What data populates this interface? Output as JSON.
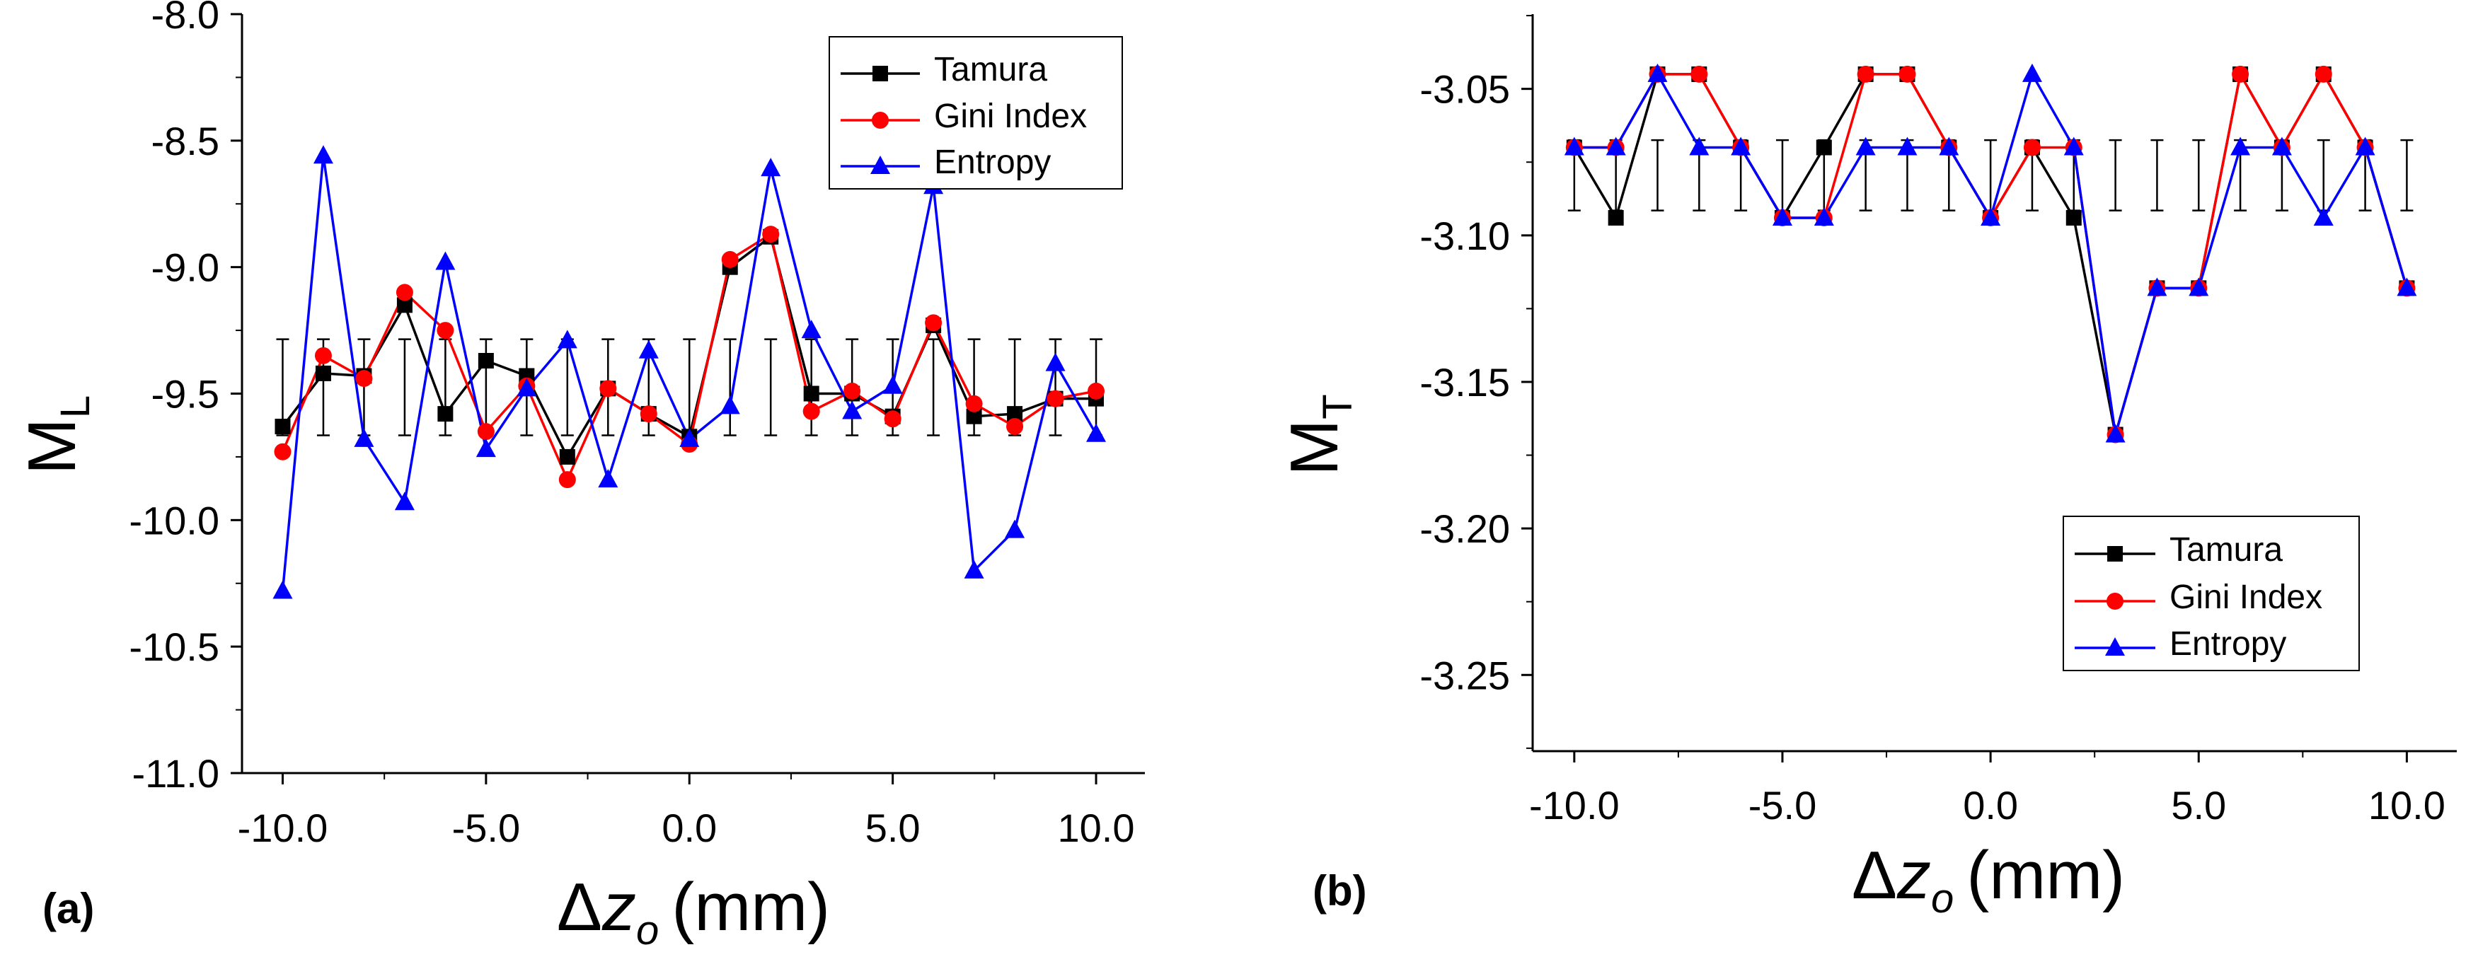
{
  "chart_data": [
    {
      "panel_label": "(a)",
      "type": "line",
      "ylabel": {
        "main": "M",
        "sub": "L"
      },
      "xlabel": {
        "delta": "Δ",
        "var": "z",
        "sub": "o",
        "unit": "(mm)"
      },
      "xlim": [
        -11,
        11.2
      ],
      "ylim": [
        -11.0,
        -8.0
      ],
      "xticks": [
        -10,
        -5,
        0,
        5,
        10
      ],
      "xtick_labels": [
        "-10.0",
        "-5.0",
        "0.0",
        "5.0",
        "10.0"
      ],
      "yticks": [
        -8.0,
        -8.5,
        -9.0,
        -9.5,
        -10.0,
        -10.5,
        -11.0
      ],
      "ytick_labels": [
        "-8.0",
        "-8.5",
        "-9.0",
        "-9.5",
        "-10.0",
        "-10.5",
        "-11.0"
      ],
      "x": [
        -10,
        -9,
        -8,
        -7,
        -6,
        -5,
        -4,
        -3,
        -2,
        -1,
        0,
        1,
        2,
        3,
        4,
        5,
        6,
        7,
        8,
        9,
        10
      ],
      "error_band": {
        "center": -9.475,
        "half_width": 0.19
      },
      "legend_position": "top-right",
      "series": [
        {
          "name": "Tamura",
          "color": "#000000",
          "marker": "square",
          "values": [
            -9.63,
            -9.42,
            -9.43,
            -9.15,
            -9.58,
            -9.37,
            -9.43,
            -9.75,
            -9.48,
            -9.58,
            -9.67,
            -9.0,
            -8.88,
            -9.5,
            -9.5,
            -9.59,
            -9.23,
            -9.59,
            -9.58,
            -9.52,
            -9.52
          ]
        },
        {
          "name": "Gini Index",
          "color": "#ff0000",
          "marker": "circle",
          "values": [
            -9.73,
            -9.35,
            -9.44,
            -9.1,
            -9.25,
            -9.65,
            -9.47,
            -9.84,
            -9.48,
            -9.58,
            -9.7,
            -8.97,
            -8.87,
            -9.57,
            -9.49,
            -9.6,
            -9.22,
            -9.54,
            -9.63,
            -9.52,
            -9.49
          ]
        },
        {
          "name": "Entropy",
          "color": "#0000ff",
          "marker": "triangle",
          "values": [
            -10.28,
            -8.56,
            -9.68,
            -9.93,
            -8.98,
            -9.72,
            -9.48,
            -9.29,
            -9.84,
            -9.33,
            -9.68,
            -9.55,
            -8.61,
            -9.25,
            -9.57,
            -9.47,
            -8.68,
            -10.2,
            -10.04,
            -9.38,
            -9.66
          ]
        }
      ]
    },
    {
      "panel_label": "(b)",
      "type": "line",
      "ylabel": {
        "main": "M",
        "sub": "T"
      },
      "xlabel": {
        "delta": "Δ",
        "var": "z",
        "sub": "o",
        "unit": "(mm)"
      },
      "xlim": [
        -11,
        11.2
      ],
      "ylim": [
        -3.276,
        -3.0245
      ],
      "xticks": [
        -10,
        -5,
        0,
        5,
        10
      ],
      "xtick_labels": [
        "-10.0",
        "-5.0",
        "0.0",
        "5.0",
        "10.0"
      ],
      "yticks": [
        -3.05,
        -3.1,
        -3.15,
        -3.2,
        -3.25
      ],
      "ytick_labels": [
        "-3.05",
        "-3.10",
        "-3.15",
        "-3.20",
        "-3.25"
      ],
      "x": [
        -10,
        -9,
        -8,
        -7,
        -6,
        -5,
        -4,
        -3,
        -2,
        -1,
        0,
        1,
        2,
        3,
        4,
        5,
        6,
        7,
        8,
        9,
        10
      ],
      "error_band": {
        "center": -3.0795,
        "half_width": 0.012
      },
      "legend_position": "center-right",
      "series": [
        {
          "name": "Tamura",
          "color": "#000000",
          "marker": "square",
          "values": [
            -3.07,
            -3.094,
            -3.045,
            -3.045,
            -3.07,
            -3.094,
            -3.07,
            -3.045,
            -3.045,
            -3.07,
            -3.094,
            -3.07,
            -3.094,
            -3.168,
            -3.118,
            -3.118,
            -3.045,
            -3.07,
            -3.045,
            -3.07,
            -3.118
          ]
        },
        {
          "name": "Gini Index",
          "color": "#ff0000",
          "marker": "circle",
          "values": [
            -3.07,
            -3.07,
            -3.045,
            -3.045,
            -3.07,
            -3.094,
            -3.094,
            -3.045,
            -3.045,
            -3.07,
            -3.094,
            -3.07,
            -3.07,
            -3.168,
            -3.118,
            -3.118,
            -3.045,
            -3.07,
            -3.045,
            -3.07,
            -3.118
          ]
        },
        {
          "name": "Entropy",
          "color": "#0000ff",
          "marker": "triangle",
          "values": [
            -3.07,
            -3.07,
            -3.045,
            -3.07,
            -3.07,
            -3.094,
            -3.094,
            -3.07,
            -3.07,
            -3.07,
            -3.094,
            -3.045,
            -3.07,
            -3.168,
            -3.118,
            -3.118,
            -3.07,
            -3.07,
            -3.094,
            -3.07,
            -3.118
          ]
        }
      ]
    }
  ]
}
